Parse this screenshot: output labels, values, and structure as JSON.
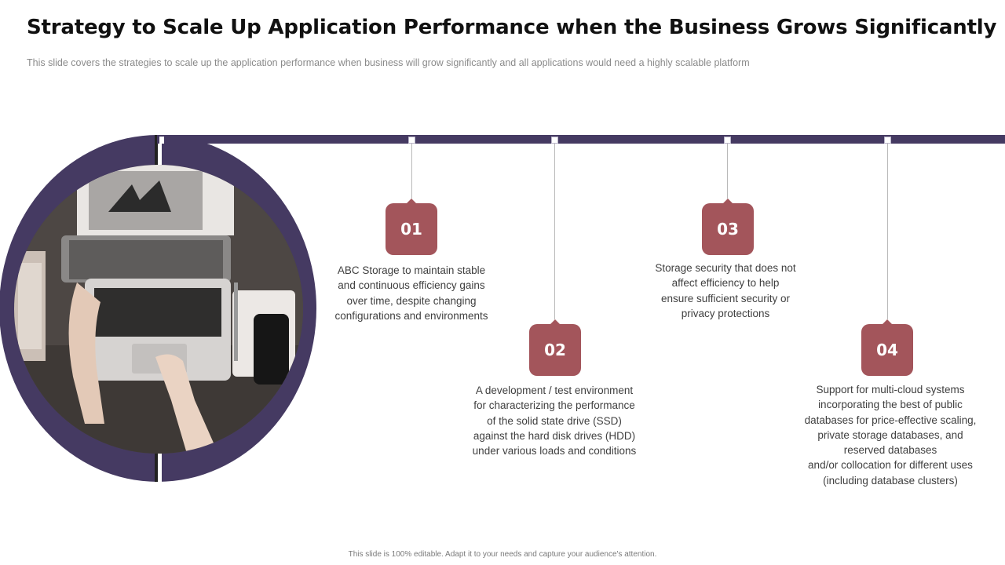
{
  "header": {
    "title": "Strategy to Scale Up Application Performance when the Business Grows Significantly",
    "subtitle": "This slide covers the strategies to scale up the application performance  when business will grow significantly and all applications would need a highly scalable platform"
  },
  "steps": [
    {
      "number": "01",
      "text": "ABC Storage to maintain stable\nand continuous efficiency gains\nover time, despite changing\nconfigurations and environments"
    },
    {
      "number": "02",
      "text": "A development / test environment\nfor characterizing the performance\nof the solid state drive (SSD)\nagainst the hard disk drives (HDD)\nunder various loads and conditions"
    },
    {
      "number": "03",
      "text": "Storage security that does not\naffect efficiency  to help\nensure sufficient  security or\nprivacy protections"
    },
    {
      "number": "04",
      "text": "Support for multi-cloud systems\nincorporating the best of public\ndatabases for price-effective scaling,\nprivate storage databases, and\nreserved databases\nand/or collocation  for different uses\n(including database clusters)"
    }
  ],
  "footer": {
    "note": "This slide is 100% editable. Adapt it to your needs and capture your audience's attention."
  },
  "colors": {
    "accent_purple": "#453a62",
    "badge_red": "#a3555b"
  },
  "image": {
    "subject": "overhead photo of hands typing on a laptop on a desk"
  }
}
